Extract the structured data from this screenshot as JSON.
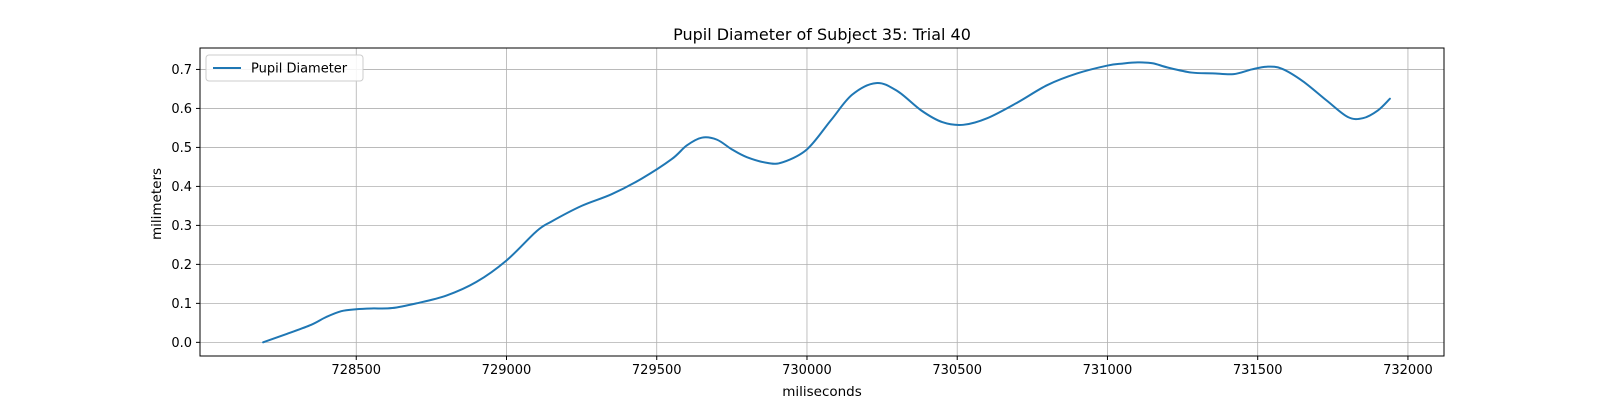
{
  "chart_data": {
    "type": "line",
    "title": "Pupil Diameter of Subject 35: Trial 40",
    "xlabel": "miliseconds",
    "ylabel": "milimeters",
    "xlim": [
      727980,
      732120
    ],
    "ylim": [
      -0.035,
      0.755
    ],
    "x_ticks": [
      728500,
      729000,
      729500,
      730000,
      730500,
      731000,
      731500,
      732000
    ],
    "y_ticks": [
      0.0,
      0.1,
      0.2,
      0.3,
      0.4,
      0.5,
      0.6,
      0.7
    ],
    "x_tick_labels": [
      "728500",
      "729000",
      "729500",
      "730000",
      "730500",
      "731000",
      "731500",
      "732000"
    ],
    "y_tick_labels": [
      "0.0",
      "0.1",
      "0.2",
      "0.3",
      "0.4",
      "0.5",
      "0.6",
      "0.7"
    ],
    "grid": true,
    "legend": {
      "position": "upper-left",
      "entries": [
        "Pupil Diameter"
      ]
    },
    "series": [
      {
        "name": "Pupil Diameter",
        "color": "#1f77b4",
        "x": [
          728190,
          728270,
          728350,
          728400,
          728450,
          728500,
          728550,
          728620,
          728700,
          728800,
          728900,
          729000,
          729100,
          729150,
          729250,
          729350,
          729450,
          729550,
          729600,
          729650,
          729700,
          729750,
          729800,
          729870,
          729920,
          730000,
          730080,
          730150,
          730230,
          730300,
          730380,
          730450,
          730520,
          730600,
          730700,
          730800,
          730900,
          731000,
          731050,
          731100,
          731150,
          731200,
          731280,
          731350,
          731420,
          731480,
          731530,
          731580,
          731650,
          731730,
          731800,
          731850,
          731900,
          731940
        ],
        "y": [
          0.0,
          0.022,
          0.045,
          0.065,
          0.08,
          0.085,
          0.087,
          0.088,
          0.1,
          0.12,
          0.155,
          0.21,
          0.285,
          0.31,
          0.35,
          0.38,
          0.42,
          0.47,
          0.505,
          0.525,
          0.52,
          0.495,
          0.475,
          0.46,
          0.462,
          0.495,
          0.57,
          0.635,
          0.665,
          0.645,
          0.595,
          0.565,
          0.558,
          0.575,
          0.615,
          0.66,
          0.69,
          0.71,
          0.715,
          0.718,
          0.716,
          0.705,
          0.692,
          0.69,
          0.688,
          0.7,
          0.707,
          0.702,
          0.67,
          0.62,
          0.578,
          0.575,
          0.595,
          0.625
        ]
      }
    ]
  }
}
